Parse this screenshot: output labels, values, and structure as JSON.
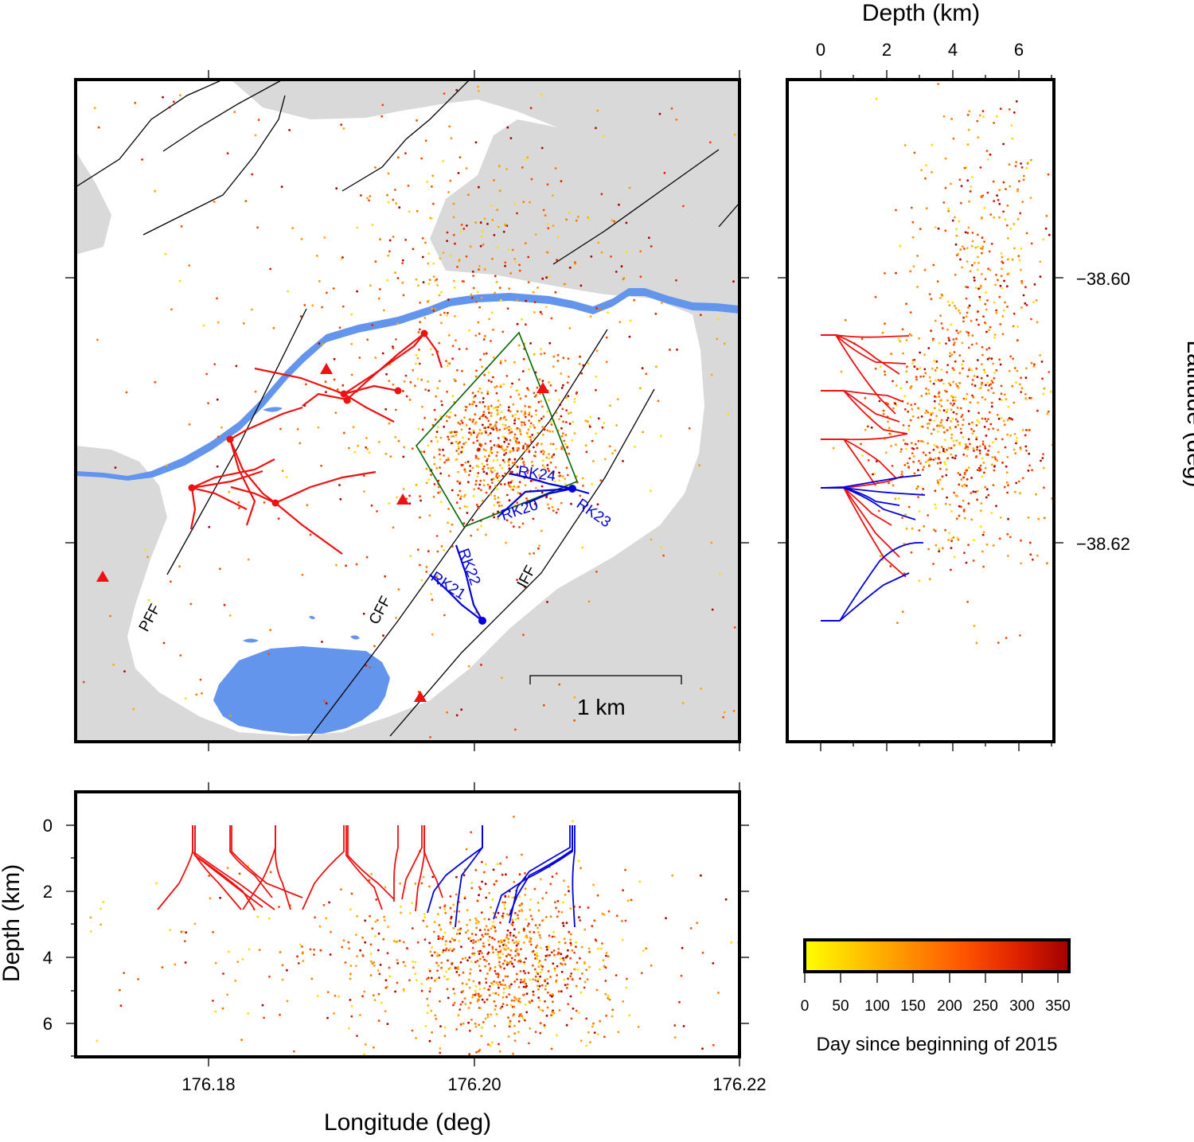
{
  "map": {
    "xlabel": "Longitude (deg)",
    "ylabel": "Latitude (deg)",
    "lon_ticks": [
      "176.18",
      "176.20",
      "176.22"
    ],
    "lat_ticks": [
      "−38.60",
      "−38.62"
    ],
    "scale_bar": "1 km",
    "fault_labels": [
      "PFF",
      "CFF",
      "IFF"
    ],
    "well_labels_blue": [
      "RK24",
      "RK20",
      "RK23",
      "RK22",
      "RK21"
    ]
  },
  "depth_panel_right": {
    "title": "Depth (km)",
    "ticks": [
      "0",
      "2",
      "4",
      "6"
    ]
  },
  "depth_panel_bottom": {
    "ylabel": "Depth (km)",
    "ticks": [
      "0",
      "2",
      "4",
      "6"
    ]
  },
  "colorbar": {
    "label": "Day since beginning of 2015",
    "ticks": [
      "0",
      "50",
      "100",
      "150",
      "200",
      "250",
      "300",
      "350"
    ],
    "range": [
      0,
      365
    ],
    "colors": [
      "#ffff00",
      "#ff9900",
      "#ff4400",
      "#aa0000"
    ]
  },
  "colors": {
    "lake": "#6495ed",
    "gray_region": "#d9d9d9",
    "red_wells": "#ee1111",
    "blue_wells": "#0000dd",
    "polygon": "#006400"
  },
  "chart_data": {
    "type": "scatter",
    "xlim": [
      176.17,
      176.22
    ],
    "ylim": [
      -38.635,
      -38.585
    ],
    "depth_range_km": [
      -1,
      7
    ],
    "series": []
  }
}
